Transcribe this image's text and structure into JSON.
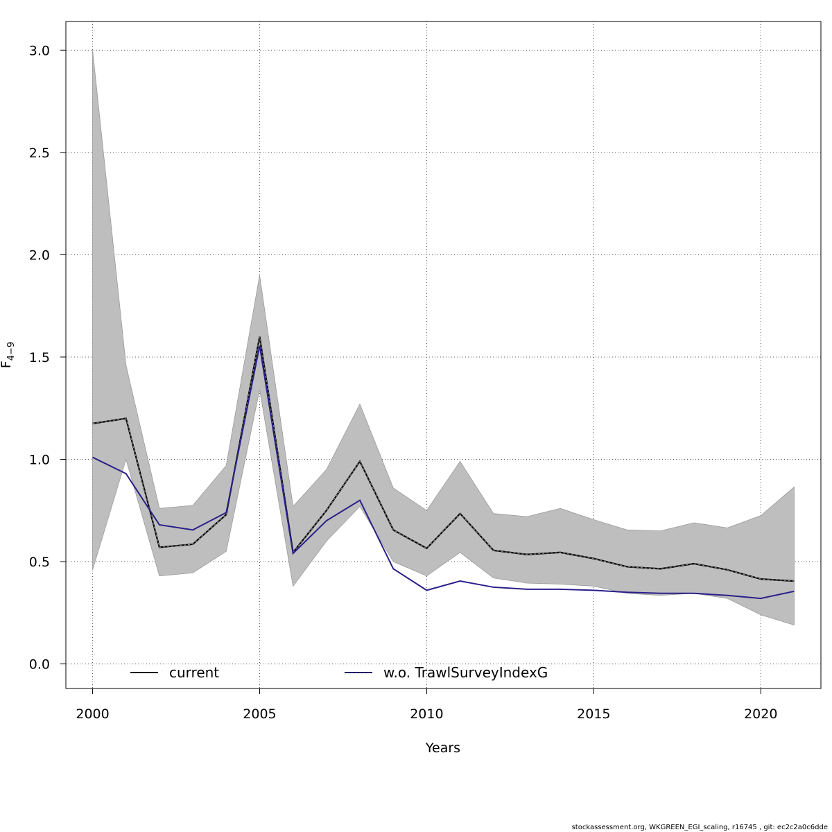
{
  "chart_data": {
    "type": "line",
    "xlabel": "Years",
    "ylabel_main": "F",
    "ylabel_sub": "4−9",
    "xlim": [
      1999.2,
      2021.8
    ],
    "ylim": [
      -0.12,
      3.14
    ],
    "x_ticks": [
      2000,
      2005,
      2010,
      2015,
      2020
    ],
    "x_tick_labels": [
      "2000",
      "2005",
      "2010",
      "2015",
      "2020"
    ],
    "y_ticks": [
      0.0,
      0.5,
      1.0,
      1.5,
      2.0,
      2.5,
      3.0
    ],
    "y_tick_labels": [
      "0.0",
      "0.5",
      "1.0",
      "1.5",
      "2.0",
      "2.5",
      "3.0"
    ],
    "grid": true,
    "legend_position": "bottom",
    "x": [
      2000,
      2001,
      2002,
      2003,
      2004,
      2005,
      2006,
      2007,
      2008,
      2009,
      2010,
      2011,
      2012,
      2013,
      2014,
      2015,
      2016,
      2017,
      2018,
      2019,
      2020,
      2021
    ],
    "band": {
      "upper": [
        3.0,
        1.46,
        0.76,
        0.775,
        0.97,
        1.9,
        0.77,
        0.95,
        1.27,
        0.86,
        0.75,
        0.99,
        0.735,
        0.72,
        0.76,
        0.705,
        0.655,
        0.65,
        0.69,
        0.665,
        0.725,
        0.865
      ],
      "lower": [
        0.46,
        1.0,
        0.43,
        0.445,
        0.55,
        1.34,
        0.38,
        0.6,
        0.77,
        0.5,
        0.43,
        0.545,
        0.42,
        0.395,
        0.39,
        0.38,
        0.345,
        0.335,
        0.345,
        0.32,
        0.24,
        0.19
      ],
      "color": "#bebebe"
    },
    "series": [
      {
        "name": "current",
        "color": "#000000",
        "values": [
          1.175,
          1.2,
          0.57,
          0.585,
          0.73,
          1.6,
          0.545,
          0.75,
          0.99,
          0.655,
          0.565,
          0.735,
          0.555,
          0.535,
          0.545,
          0.515,
          0.475,
          0.465,
          0.49,
          0.46,
          0.415,
          0.405
        ]
      },
      {
        "name": "w.o. TrawlSurveyIndexG",
        "color": "#2a1f8a",
        "values": [
          1.01,
          0.93,
          0.68,
          0.655,
          0.74,
          1.555,
          0.54,
          0.7,
          0.8,
          0.465,
          0.36,
          0.405,
          0.375,
          0.365,
          0.365,
          0.36,
          0.35,
          0.345,
          0.345,
          0.335,
          0.32,
          0.355
        ]
      }
    ]
  },
  "footer": "stockassessment.org, WKGREEN_EGI_scaling, r16745 , git: ec2c2a0c6dde"
}
